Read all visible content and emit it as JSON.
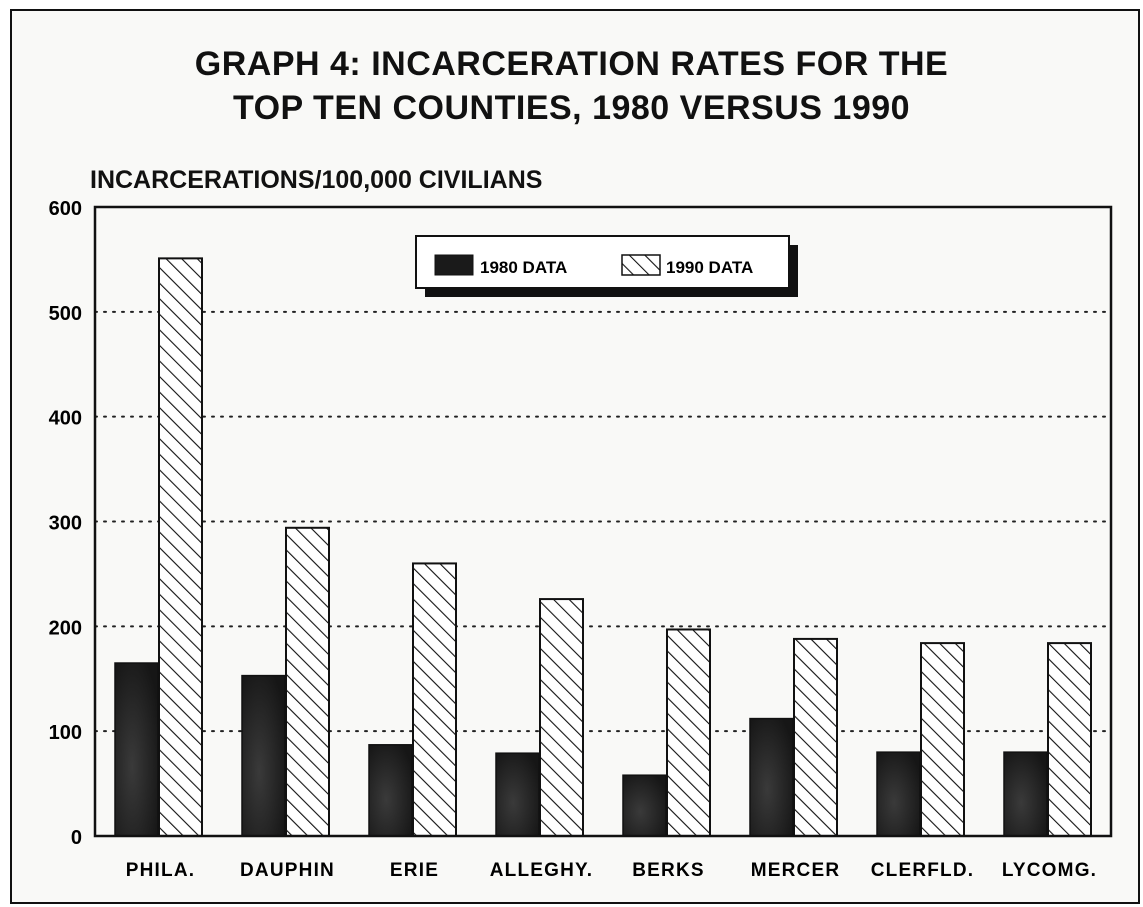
{
  "chart_data": {
    "type": "bar",
    "title_lines": [
      "GRAPH 4: INCARCERATION RATES FOR THE",
      "TOP TEN COUNTIES, 1980 VERSUS 1990"
    ],
    "ylabel": "INCARCERATIONS/100,000 CIVILIANS",
    "xlabel": "",
    "ylim": [
      0,
      600
    ],
    "yticks": [
      0,
      100,
      200,
      300,
      400,
      500,
      600
    ],
    "grid": "horizontal dotted",
    "legend_position": "top-center",
    "categories": [
      "PHILA.",
      "DAUPHIN",
      "ERIE",
      "ALLEGHY.",
      "BERKS",
      "MERCER",
      "CLERFLD.",
      "LYCOMG."
    ],
    "series": [
      {
        "name": "1980 DATA",
        "style": "solid",
        "color": "#1e1e1e",
        "values": [
          165,
          153,
          87,
          79,
          58,
          112,
          80,
          80
        ]
      },
      {
        "name": "1990 DATA",
        "style": "hatched",
        "color": "#ffffff",
        "values": [
          551,
          294,
          260,
          226,
          197,
          188,
          184,
          184
        ]
      }
    ]
  }
}
